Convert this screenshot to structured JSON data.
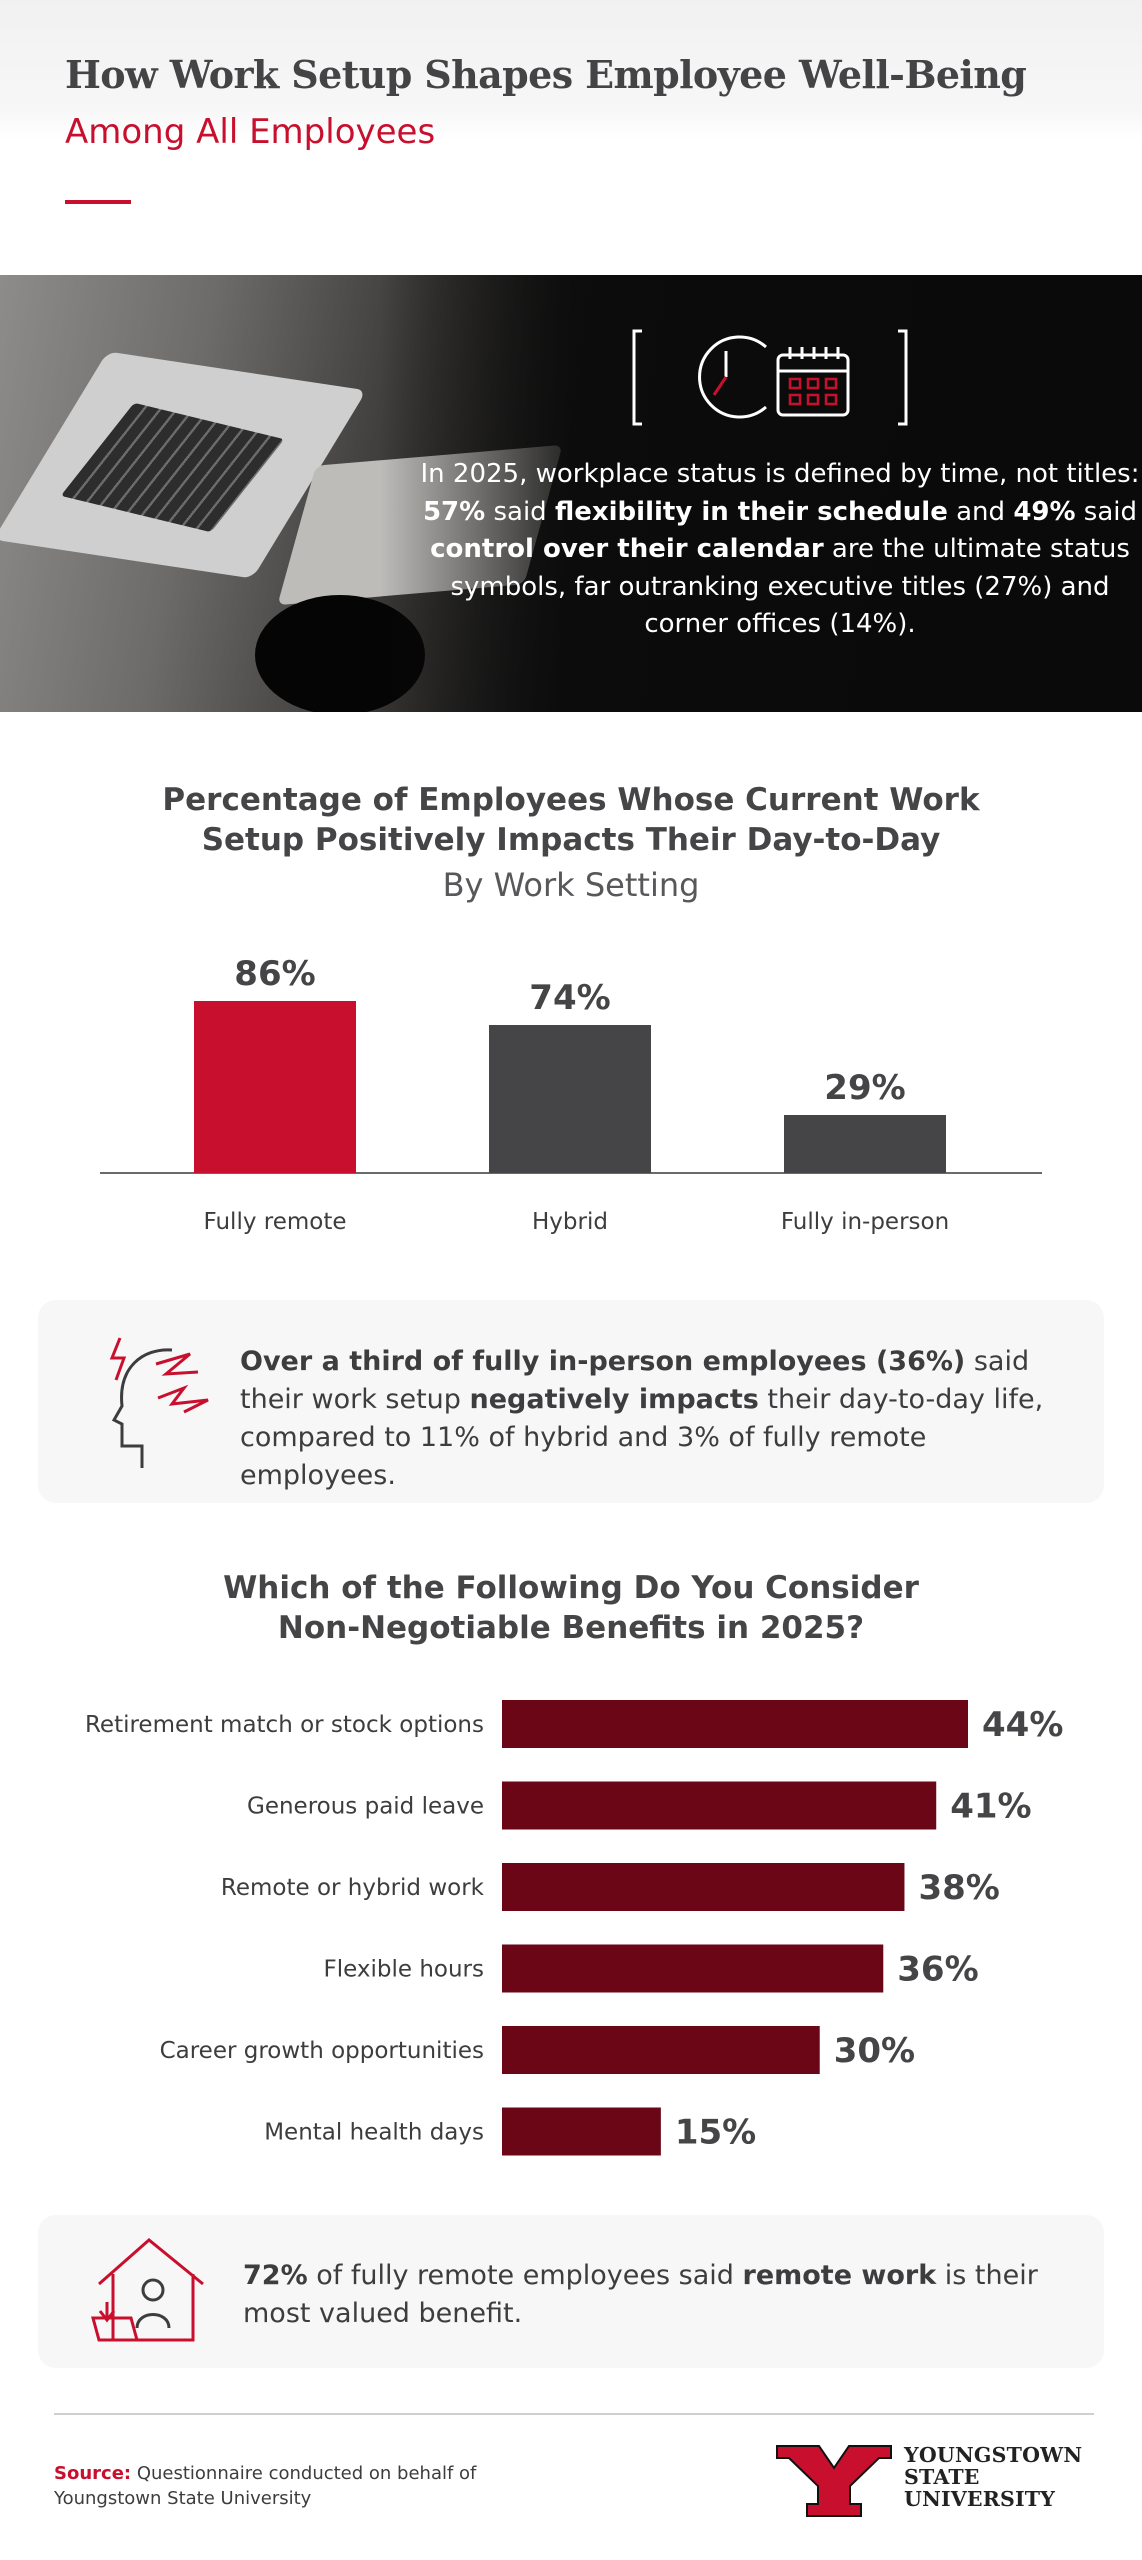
{
  "header": {
    "title": "How Work Setup Shapes Employee Well-Being",
    "subtitle": "Among All Employees"
  },
  "hero": {
    "icons": [
      "clock-icon",
      "calendar-icon"
    ],
    "text": [
      {
        "t": "In 2025, workplace status is defined by time, ",
        "b": false
      },
      {
        "t": "not titles: ",
        "b": false
      },
      {
        "t": "57%",
        "b": true
      },
      {
        "t": " said ",
        "b": false
      },
      {
        "t": "flexibility in their schedule",
        "b": true
      },
      {
        "t": " and ",
        "b": false
      },
      {
        "t": "49%",
        "b": true
      },
      {
        "t": " said ",
        "b": false
      },
      {
        "t": "control over their calendar",
        "b": true
      },
      {
        "t": " are the ultimate status symbols, far outranking executive titles (27%) and corner offices (14%).",
        "b": false
      }
    ]
  },
  "column_chart": {
    "title_line1": "Percentage of Employees Whose Current Work",
    "title_line2": "Setup Positively Impacts Their Day-to-Day",
    "subtitle": "By Work Setting"
  },
  "callout1": {
    "icon": "stressed-head-icon",
    "text": [
      {
        "t": "Over a third of fully in-person employees (36%)",
        "b": true
      },
      {
        "t": " said their work setup ",
        "b": false
      },
      {
        "t": "negatively impacts",
        "b": true
      },
      {
        "t": " their day-to-day life, compared to 11% of hybrid and 3% of fully remote employees.",
        "b": false
      }
    ]
  },
  "bar_chart": {
    "title_line1": "Which of the Following Do You Consider",
    "title_line2": "Non-Negotiable Benefits in 2025?"
  },
  "callout2": {
    "icon": "home-work-icon",
    "text": [
      {
        "t": "72%",
        "b": true
      },
      {
        "t": " of fully remote employees said ",
        "b": false
      },
      {
        "t": "remote work",
        "b": true
      },
      {
        "t": " is their most valued benefit.",
        "b": false
      }
    ]
  },
  "footer": {
    "source_label": "Source:",
    "source_text": " Questionnaire conducted on behalf of",
    "source_text2": "Youngstown State University",
    "logo_line1": "YOUNGSTOWN",
    "logo_line2": "STATE",
    "logo_line3": "UNIVERSITY"
  },
  "colors": {
    "accent_red": "#c8102e",
    "dark_gray": "#454547",
    "maroon": "#6a0616"
  },
  "chart_data": [
    {
      "type": "bar",
      "title": "Percentage of Employees Whose Current Work Setup Positively Impacts Their Day-to-Day",
      "subtitle": "By Work Setting",
      "categories": [
        "Fully remote",
        "Hybrid",
        "Fully in-person"
      ],
      "values": [
        86,
        74,
        29
      ],
      "value_labels": [
        "86%",
        "74%",
        "29%"
      ],
      "colors": [
        "#c8102e",
        "#454547",
        "#454547"
      ],
      "ylim": [
        0,
        100
      ],
      "grid": false
    },
    {
      "type": "bar",
      "orientation": "horizontal",
      "title": "Which of the Following Do You Consider Non-Negotiable Benefits in 2025?",
      "categories": [
        "Retirement match or stock options",
        "Generous paid leave",
        "Remote or hybrid work",
        "Flexible hours",
        "Career growth opportunities",
        "Mental health days"
      ],
      "values": [
        44,
        41,
        38,
        36,
        30,
        15
      ],
      "value_labels": [
        "44%",
        "41%",
        "38%",
        "36%",
        "30%",
        "15%"
      ],
      "color": "#6a0616",
      "xlim": [
        0,
        44
      ],
      "grid": false
    }
  ]
}
